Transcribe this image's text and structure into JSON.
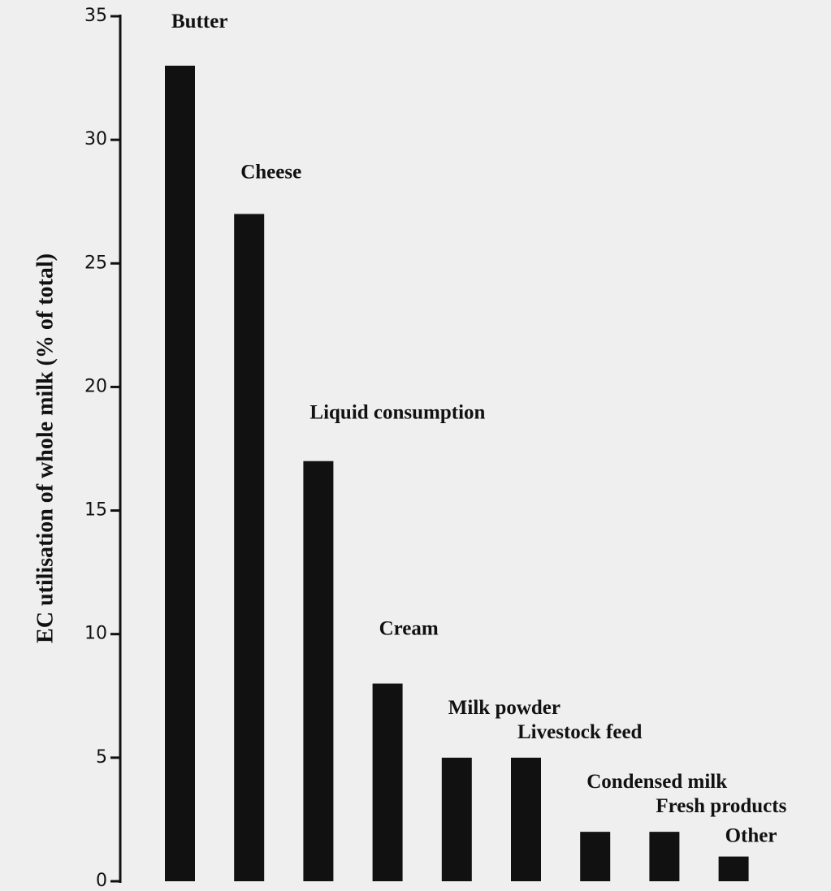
{
  "chart_data": {
    "type": "bar",
    "y_label": "EC utilisation of whole milk (% of total)",
    "categories": [
      "Butter",
      "Cheese",
      "Liquid consumption",
      "Cream",
      "Milk powder",
      "Livestock feed",
      "Condensed milk",
      "Fresh products",
      "Other"
    ],
    "values": [
      33,
      27,
      17,
      8,
      5,
      5,
      2,
      2,
      1
    ],
    "color": "#111111",
    "ylim": [
      0,
      35
    ],
    "yticks": [
      0,
      5,
      10,
      15,
      20,
      25,
      30,
      35
    ],
    "grid": false
  }
}
